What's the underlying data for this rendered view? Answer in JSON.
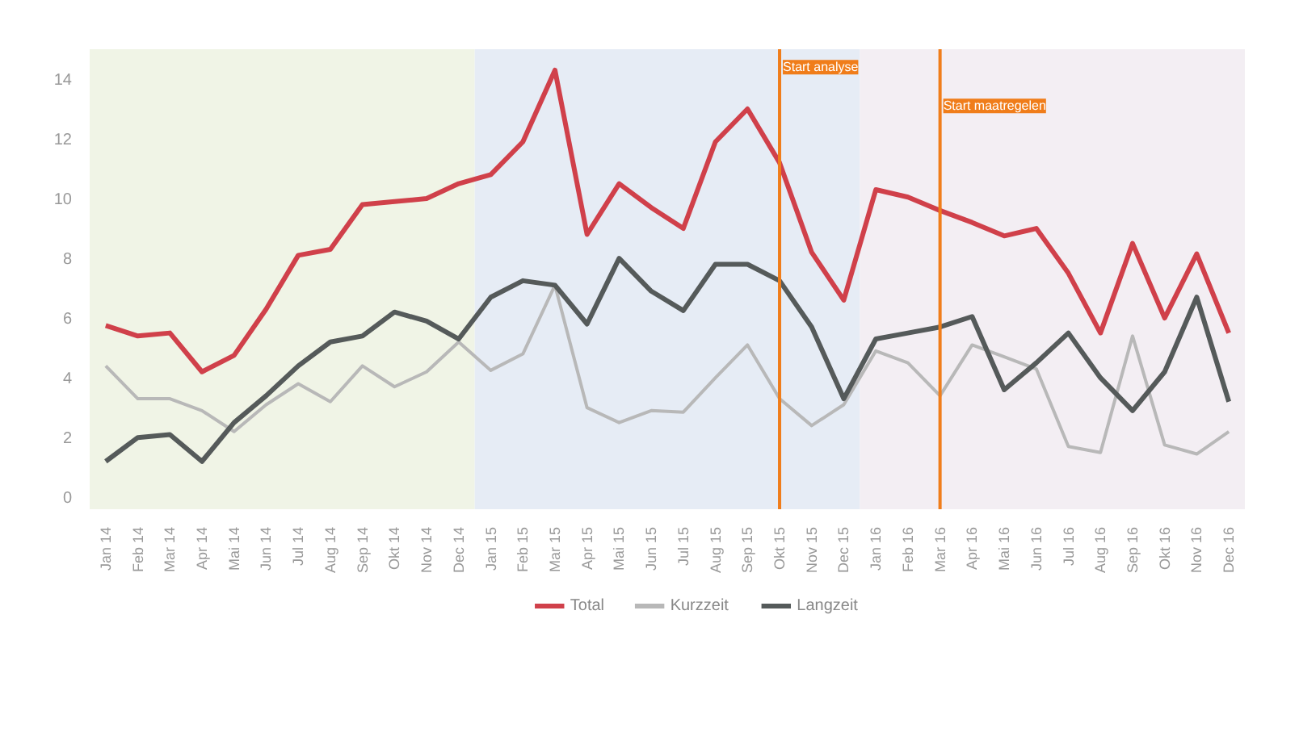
{
  "chart_data": {
    "type": "line",
    "categories": [
      "Jan 14",
      "Feb 14",
      "Mar 14",
      "Apr 14",
      "Mai 14",
      "Jun 14",
      "Jul 14",
      "Aug 14",
      "Sep 14",
      "Okt 14",
      "Nov 14",
      "Dec 14",
      "Jan 15",
      "Feb 15",
      "Mar 15",
      "Apr 15",
      "Mai 15",
      "Jun 15",
      "Jul 15",
      "Aug 15",
      "Sep 15",
      "Okt 15",
      "Nov 15",
      "Dec 15",
      "Jan 16",
      "Feb 16",
      "Mar 16",
      "Apr 16",
      "Mai 16",
      "Jun 16",
      "Jul 16",
      "Aug 16",
      "Sep 16",
      "Okt 16",
      "Nov 16",
      "Dec 16"
    ],
    "series": [
      {
        "name": "Total",
        "color": "#d0404a",
        "values": [
          5.75,
          5.4,
          5.5,
          4.2,
          4.75,
          6.3,
          8.1,
          8.3,
          9.8,
          9.9,
          10.0,
          10.5,
          10.8,
          11.9,
          14.3,
          8.8,
          10.5,
          9.7,
          9.0,
          11.9,
          13.0,
          11.2,
          8.2,
          6.6,
          10.3,
          10.05,
          9.6,
          9.2,
          8.75,
          9.0,
          7.5,
          5.5,
          8.5,
          6.0,
          8.15,
          5.5
        ]
      },
      {
        "name": "Kurzzeit",
        "color": "#b8b8b8",
        "values": [
          4.4,
          3.3,
          3.3,
          2.9,
          2.2,
          3.1,
          3.8,
          3.2,
          4.4,
          3.7,
          4.2,
          5.2,
          4.25,
          4.8,
          7.1,
          3.0,
          2.5,
          2.9,
          2.85,
          4.0,
          5.1,
          3.3,
          2.4,
          3.1,
          4.9,
          4.5,
          3.4,
          5.1,
          4.7,
          4.3,
          1.7,
          1.5,
          5.4,
          1.75,
          1.45,
          2.2
        ]
      },
      {
        "name": "Langzeit",
        "color": "#555a5a",
        "values": [
          1.2,
          2.0,
          2.1,
          1.2,
          2.5,
          3.4,
          4.4,
          5.2,
          5.4,
          6.2,
          5.9,
          5.3,
          6.7,
          7.25,
          7.1,
          5.8,
          8.0,
          6.9,
          6.25,
          7.8,
          7.8,
          7.25,
          5.7,
          3.3,
          5.3,
          5.5,
          5.7,
          6.05,
          3.6,
          4.5,
          5.5,
          4.0,
          2.9,
          4.2,
          6.7,
          3.2
        ]
      }
    ],
    "ylim": [
      -0.4,
      15
    ],
    "yticks": [
      0,
      2,
      4,
      6,
      8,
      10,
      12,
      14
    ],
    "legend": "bottom",
    "ref_lines": [
      {
        "axis": "x",
        "value": "Okt 15",
        "label": "Start analyse",
        "color": "#f07d1a"
      },
      {
        "axis": "x",
        "value": "Mar 16",
        "label": "Start maatregelen",
        "color": "#f07d1a"
      }
    ],
    "bands": [
      {
        "axis": "x",
        "from": "Jan 14",
        "to": "Dec 14",
        "color": "#f0f4e6"
      },
      {
        "axis": "x",
        "from": "Jan 15",
        "to": "Dec 15",
        "color": "#e6ecf5"
      },
      {
        "axis": "x",
        "from": "Jan 16",
        "to": "Dec 16",
        "color": "#f3eef3"
      }
    ]
  }
}
